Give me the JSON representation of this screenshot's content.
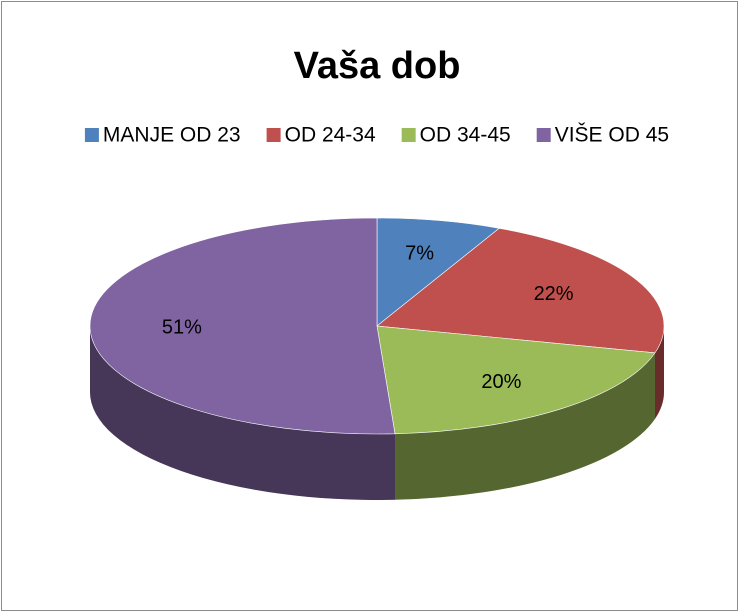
{
  "chart_data": {
    "type": "pie",
    "title": "Vaša dob",
    "categories": [
      "MANJE OD 23",
      "OD 24-34",
      "OD 34-45",
      "VIŠE OD 45"
    ],
    "values": [
      7,
      22,
      20,
      51
    ],
    "value_labels": [
      "7%",
      "22%",
      "20%",
      "51%"
    ],
    "colors": [
      "#4f81bd",
      "#c0504d",
      "#9bbb59",
      "#8064a2"
    ],
    "legend": "top",
    "3d": true
  }
}
